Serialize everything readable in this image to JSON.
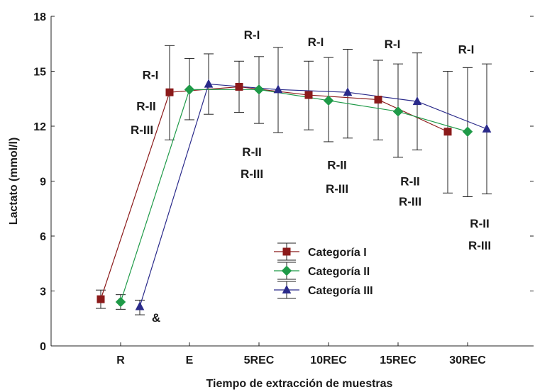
{
  "chart_data": {
    "type": "line",
    "xlabel": "Tiempo de extracción de muestras",
    "ylabel": "Lactato (mmol/l)",
    "categories": [
      "R",
      "E",
      "5REC",
      "10REC",
      "15REC",
      "30REC"
    ],
    "ylim": [
      0,
      18
    ],
    "yticks": [
      0,
      3,
      6,
      9,
      12,
      15,
      18
    ],
    "grid": false,
    "legend_position": "center-bottom",
    "series": [
      {
        "name": "Categoría I",
        "color": "#8b1a1a",
        "marker": "square",
        "values": [
          2.55,
          13.85,
          14.15,
          13.7,
          13.45,
          11.7
        ],
        "error_low": [
          2.05,
          11.25,
          12.75,
          11.8,
          11.25,
          8.35
        ],
        "error_high": [
          3.05,
          16.4,
          15.55,
          15.55,
          15.6,
          15.0
        ]
      },
      {
        "name": "Categoría II",
        "color": "#1f9a48",
        "marker": "diamond",
        "values": [
          2.4,
          14.0,
          14.0,
          13.4,
          12.8,
          11.7
        ],
        "error_low": [
          2.0,
          12.35,
          12.15,
          11.15,
          10.3,
          8.15
        ],
        "error_high": [
          2.8,
          15.7,
          15.8,
          15.75,
          15.4,
          15.2
        ]
      },
      {
        "name": "Categoría III",
        "color": "#2a2a8a",
        "marker": "triangle",
        "values": [
          2.15,
          14.3,
          14.0,
          13.85,
          13.35,
          11.85
        ],
        "error_low": [
          1.7,
          12.65,
          11.65,
          11.35,
          10.7,
          8.3
        ],
        "error_high": [
          2.5,
          15.95,
          16.3,
          16.2,
          16.0,
          15.4
        ]
      }
    ],
    "annotations": [
      {
        "text": "R-I",
        "category": "E",
        "y": 14.8
      },
      {
        "text": "R-II",
        "category": "E",
        "y": 13.1
      },
      {
        "text": "R-III",
        "category": "E",
        "y": 11.8
      },
      {
        "text": "R-I",
        "category": "5REC",
        "y": 17.0
      },
      {
        "text": "R-II",
        "category": "5REC",
        "y": 10.6
      },
      {
        "text": "R-III",
        "category": "5REC",
        "y": 9.4
      },
      {
        "text": "R-I",
        "category": "10REC",
        "y": 16.6
      },
      {
        "text": "R-II",
        "category": "10REC",
        "y": 9.9
      },
      {
        "text": "R-III",
        "category": "10REC",
        "y": 8.6
      },
      {
        "text": "R-I",
        "category": "15REC",
        "y": 16.5
      },
      {
        "text": "R-II",
        "category": "15REC",
        "y": 9.0
      },
      {
        "text": "R-III",
        "category": "15REC",
        "y": 7.9
      },
      {
        "text": "R-I",
        "category": "30REC",
        "y": 16.2
      },
      {
        "text": "R-II",
        "category": "30REC",
        "y": 6.7
      },
      {
        "text": "R-III",
        "category": "30REC",
        "y": 5.5
      },
      {
        "text": "&",
        "category": "R",
        "y": 1.55
      }
    ]
  }
}
